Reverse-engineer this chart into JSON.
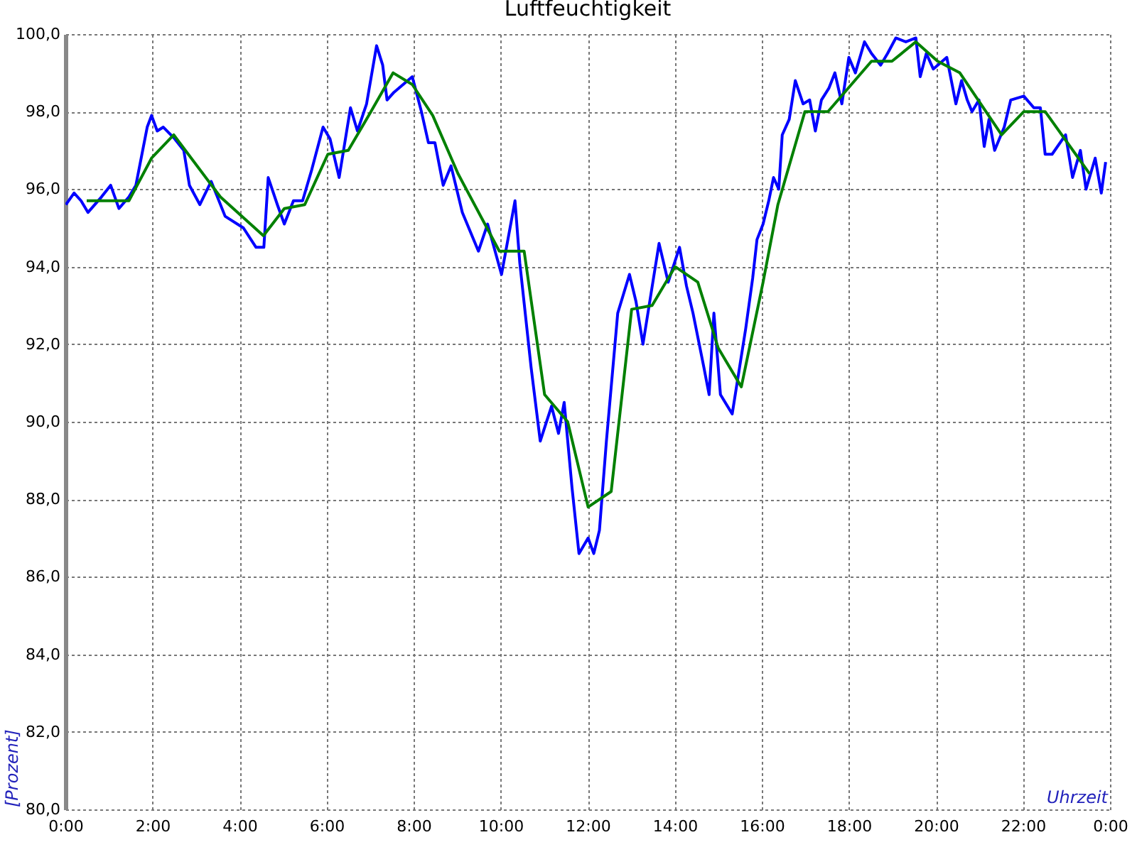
{
  "chart_data": {
    "type": "line",
    "title": "Luftfeuchtigkeit",
    "xlabel": "Uhrzeit",
    "ylabel": "[Prozent]",
    "xlim": [
      0,
      24
    ],
    "ylim": [
      80,
      100
    ],
    "xticks": [
      {
        "value": 0,
        "label": "0:00"
      },
      {
        "value": 2,
        "label": "2:00"
      },
      {
        "value": 4,
        "label": "4:00"
      },
      {
        "value": 6,
        "label": "6:00"
      },
      {
        "value": 8,
        "label": "8:00"
      },
      {
        "value": 10,
        "label": "10:00"
      },
      {
        "value": 12,
        "label": "12:00"
      },
      {
        "value": 14,
        "label": "14:00"
      },
      {
        "value": 16,
        "label": "16:00"
      },
      {
        "value": 18,
        "label": "18:00"
      },
      {
        "value": 20,
        "label": "20:00"
      },
      {
        "value": 22,
        "label": "22:00"
      },
      {
        "value": 24,
        "label": "0:00"
      }
    ],
    "yticks": [
      {
        "value": 80,
        "label": "80,0"
      },
      {
        "value": 82,
        "label": "82,0"
      },
      {
        "value": 84,
        "label": "84,0"
      },
      {
        "value": 86,
        "label": "86,0"
      },
      {
        "value": 88,
        "label": "88,0"
      },
      {
        "value": 90,
        "label": "90,0"
      },
      {
        "value": 92,
        "label": "92,0"
      },
      {
        "value": 94,
        "label": "94,0"
      },
      {
        "value": 96,
        "label": "96,0"
      },
      {
        "value": 98,
        "label": "98,0"
      },
      {
        "value": 100,
        "label": "100,0"
      }
    ],
    "grid": true,
    "line_style": "solid",
    "series": [
      {
        "color": "#0000ff",
        "x": [
          0.01,
          0.2,
          0.36,
          0.52,
          0.83,
          1.04,
          1.23,
          1.46,
          1.62,
          1.88,
          1.98,
          2.11,
          2.25,
          2.51,
          2.72,
          2.85,
          3.09,
          3.35,
          3.67,
          4.09,
          4.38,
          4.56,
          4.66,
          4.87,
          5.03,
          5.24,
          5.45,
          5.66,
          5.92,
          6.08,
          6.29,
          6.55,
          6.71,
          6.92,
          7.15,
          7.29,
          7.39,
          7.55,
          7.97,
          8.18,
          8.34,
          8.49,
          8.68,
          8.86,
          9.12,
          9.49,
          9.7,
          10.02,
          10.33,
          10.44,
          10.7,
          10.91,
          11.17,
          11.33,
          11.46,
          11.64,
          11.8,
          12.01,
          12.14,
          12.27,
          12.43,
          12.69,
          12.96,
          13.11,
          13.27,
          13.54,
          13.64,
          13.85,
          14.11,
          14.27,
          14.42,
          14.67,
          14.79,
          14.9,
          15.05,
          15.32,
          15.63,
          15.79,
          15.89,
          16.03,
          16.16,
          16.27,
          16.39,
          16.47,
          16.63,
          16.77,
          16.95,
          17.1,
          17.23,
          17.37,
          17.54,
          17.68,
          17.84,
          18.0,
          18.15,
          18.36,
          18.52,
          18.73,
          18.89,
          19.08,
          19.31,
          19.54,
          19.64,
          19.78,
          19.94,
          20.25,
          20.46,
          20.59,
          20.72,
          20.83,
          20.99,
          21.11,
          21.22,
          21.35,
          21.57,
          21.72,
          22.02,
          22.25,
          22.4,
          22.51,
          22.67,
          22.98,
          23.14,
          23.32,
          23.45,
          23.66,
          23.8,
          23.9
        ],
        "values": [
          95.6,
          95.9,
          95.7,
          95.4,
          95.8,
          96.1,
          95.5,
          95.8,
          96.1,
          97.6,
          97.9,
          97.5,
          97.6,
          97.3,
          97.0,
          96.1,
          95.6,
          96.2,
          95.3,
          95.0,
          94.5,
          94.5,
          96.3,
          95.6,
          95.1,
          95.7,
          95.7,
          96.5,
          97.6,
          97.3,
          96.3,
          98.1,
          97.5,
          98.2,
          99.7,
          99.2,
          98.3,
          98.5,
          98.9,
          98.0,
          97.2,
          97.2,
          96.1,
          96.6,
          95.4,
          94.4,
          95.1,
          93.8,
          95.7,
          94.1,
          91.4,
          89.5,
          90.4,
          89.7,
          90.5,
          88.3,
          86.6,
          87.0,
          86.6,
          87.2,
          89.5,
          92.8,
          93.8,
          93.1,
          92.0,
          93.9,
          94.6,
          93.6,
          94.5,
          93.5,
          92.8,
          91.4,
          90.7,
          92.8,
          90.7,
          90.2,
          92.4,
          93.7,
          94.7,
          95.1,
          95.7,
          96.3,
          96.0,
          97.4,
          97.8,
          98.8,
          98.2,
          98.3,
          97.5,
          98.3,
          98.6,
          99.0,
          98.2,
          99.4,
          99.0,
          99.8,
          99.5,
          99.2,
          99.5,
          99.9,
          99.8,
          99.9,
          98.9,
          99.5,
          99.1,
          99.4,
          98.2,
          98.8,
          98.3,
          98.0,
          98.3,
          97.1,
          97.8,
          97.0,
          97.6,
          98.3,
          98.4,
          98.1,
          98.1,
          96.9,
          96.9,
          97.4,
          96.3,
          97.0,
          96.0,
          96.8,
          95.9,
          96.7
        ]
      },
      {
        "color": "#008000",
        "x": [
          0.49,
          1.46,
          1.98,
          2.49,
          3.56,
          4.55,
          5.03,
          5.5,
          6.03,
          6.5,
          7.02,
          7.53,
          7.97,
          8.44,
          9.02,
          9.97,
          10.54,
          11.01,
          11.54,
          12.01,
          12.54,
          13.01,
          13.48,
          14.01,
          14.53,
          15.0,
          15.53,
          16.03,
          16.37,
          16.99,
          17.52,
          18.52,
          18.99,
          19.54,
          20.04,
          20.55,
          21.51,
          22.02,
          22.51,
          23.53
        ],
        "values": [
          95.7,
          95.7,
          96.8,
          97.4,
          95.8,
          94.8,
          95.5,
          95.6,
          96.9,
          97.0,
          98.0,
          99.0,
          98.7,
          97.9,
          96.4,
          94.4,
          94.4,
          90.7,
          90.0,
          87.8,
          88.2,
          92.9,
          93.0,
          94.0,
          93.6,
          91.9,
          90.9,
          93.6,
          95.6,
          98.0,
          98.0,
          99.3,
          99.3,
          99.8,
          99.3,
          99.0,
          97.4,
          98.0,
          98.0,
          96.4
        ]
      }
    ]
  }
}
